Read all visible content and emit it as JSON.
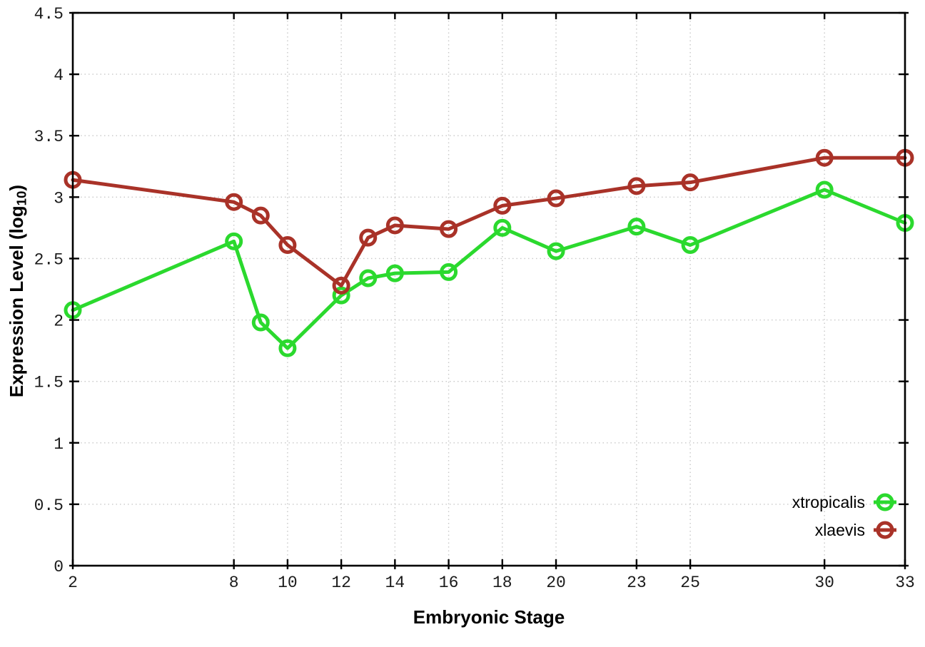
{
  "chart_data": {
    "type": "line",
    "title": "",
    "xlabel": "Embryonic Stage",
    "ylabel": {
      "text": "Expression Level (log",
      "sub": "10",
      "end": ")"
    },
    "xlim": [
      2,
      33
    ],
    "ylim": [
      0,
      4.5
    ],
    "x_ticks": [
      2,
      8,
      10,
      12,
      14,
      16,
      18,
      20,
      23,
      25,
      30,
      33
    ],
    "y_ticks": [
      0,
      0.5,
      1,
      1.5,
      2,
      2.5,
      3,
      3.5,
      4,
      4.5
    ],
    "grid": true,
    "legend_position": "bottom-right",
    "x": [
      2,
      8,
      9,
      10,
      12,
      13,
      14,
      16,
      18,
      20,
      23,
      25,
      30,
      33
    ],
    "series": [
      {
        "name": "xtropicalis",
        "color": "#2bd92e",
        "values": [
          2.08,
          2.64,
          1.98,
          1.77,
          2.2,
          2.34,
          2.38,
          2.39,
          2.75,
          2.56,
          2.76,
          2.61,
          3.06,
          2.79
        ]
      },
      {
        "name": "xlaevis",
        "color": "#a93228",
        "values": [
          3.14,
          2.96,
          2.85,
          2.61,
          2.28,
          2.67,
          2.77,
          2.74,
          2.93,
          2.99,
          3.09,
          3.12,
          3.32,
          3.32
        ]
      }
    ]
  },
  "colors": {
    "grid": "#c8c8c8",
    "axis": "#000000",
    "tick_label": "#1a1a1a",
    "background": "#ffffff"
  }
}
